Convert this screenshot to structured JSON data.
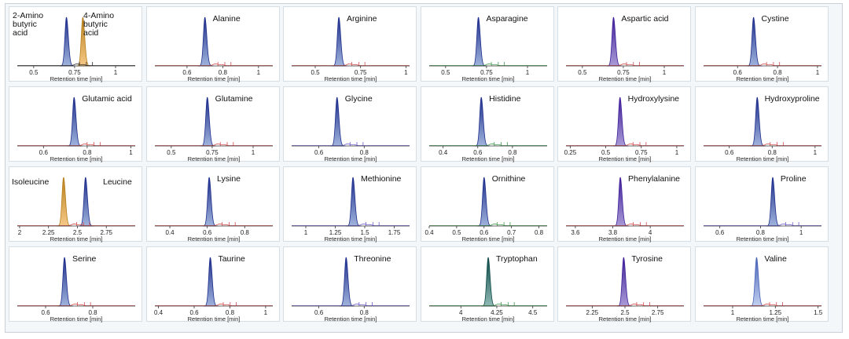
{
  "chart_data": [
    {
      "type": "line",
      "title": "2-Amino butyric acid",
      "title_lines": [
        "2-Amino",
        "butyric",
        "acid"
      ],
      "title2": "4-Amino butyric acid",
      "title2_lines": [
        "4-Amino",
        "butyric",
        "acid"
      ],
      "xlabel": "Retention time [min]",
      "xlim": [
        0.4,
        1.12
      ],
      "ticks": [
        0.5,
        0.75,
        1
      ],
      "tick_labels": [
        "0.5",
        "0.75",
        "1"
      ],
      "peak": 0.7,
      "peak2": 0.8,
      "color": "blue",
      "color2": "orange",
      "trace": "#2a2a2a"
    },
    {
      "type": "line",
      "title": "Alanine",
      "xlabel": "Retention time [min]",
      "xlim": [
        0.42,
        1.08
      ],
      "ticks": [
        0.6,
        0.8,
        1
      ],
      "tick_labels": [
        "0.6",
        "0.8",
        "1"
      ],
      "peak": 0.7,
      "color": "blue",
      "trace": "#d64a4a"
    },
    {
      "type": "line",
      "title": "Arginine",
      "xlabel": "Retention time [min]",
      "xlim": [
        0.37,
        1.02
      ],
      "ticks": [
        0.5,
        0.75,
        1
      ],
      "tick_labels": [
        "0.5",
        "0.75",
        "1"
      ],
      "peak": 0.63,
      "color": "blue",
      "trace": "#d64a4a"
    },
    {
      "type": "line",
      "title": "Asparagine",
      "xlabel": "Retention time [min]",
      "xlim": [
        0.4,
        1.12
      ],
      "ticks": [
        0.5,
        0.75,
        1
      ],
      "tick_labels": [
        "0.5",
        "0.75",
        "1"
      ],
      "peak": 0.7,
      "color": "blue",
      "trace": "#3e9a4a"
    },
    {
      "type": "line",
      "title": "Aspartic acid",
      "xlabel": "Retention time [min]",
      "xlim": [
        0.4,
        1.12
      ],
      "ticks": [
        0.5,
        0.75,
        1
      ],
      "tick_labels": [
        "0.5",
        "0.75",
        "1"
      ],
      "peak": 0.69,
      "color": "violet",
      "trace": "#d64a4a"
    },
    {
      "type": "line",
      "title": "Cystine",
      "xlabel": "Retention time [min]",
      "xlim": [
        0.43,
        1.02
      ],
      "ticks": [
        0.6,
        0.8,
        1
      ],
      "tick_labels": [
        "0.6",
        "0.8",
        "1"
      ],
      "peak": 0.68,
      "color": "blue",
      "trace": "#d64a4a"
    },
    {
      "type": "line",
      "title": "Glutamic acid",
      "xlabel": "Retention time [min]",
      "xlim": [
        0.48,
        1.02
      ],
      "ticks": [
        0.6,
        0.8,
        1
      ],
      "tick_labels": [
        "0.6",
        "0.8",
        "1"
      ],
      "peak": 0.74,
      "color": "blue",
      "trace": "#d64a4a"
    },
    {
      "type": "line",
      "title": "Glutamine",
      "xlabel": "Retention time [min]",
      "xlim": [
        0.4,
        1.12
      ],
      "ticks": [
        0.5,
        0.75,
        1
      ],
      "tick_labels": [
        "0.5",
        "0.75",
        "1"
      ],
      "peak": 0.72,
      "color": "blue",
      "trace": "#d64a4a"
    },
    {
      "type": "line",
      "title": "Glycine",
      "xlabel": "Retention time [min]",
      "xlim": [
        0.48,
        1.0
      ],
      "ticks": [
        0.6,
        0.8
      ],
      "tick_labels": [
        "0.6",
        "0.8"
      ],
      "peak": 0.68,
      "color": "blue",
      "trace": "#6a5acd"
    },
    {
      "type": "line",
      "title": "Histidine",
      "xlabel": "Retention time [min]",
      "xlim": [
        0.32,
        1.0
      ],
      "ticks": [
        0.4,
        0.6,
        0.8
      ],
      "tick_labels": [
        "0.4",
        "0.6",
        "0.8"
      ],
      "peak": 0.62,
      "color": "blue",
      "trace": "#3e9a4a"
    },
    {
      "type": "line",
      "title": "Hydroxylysine",
      "xlabel": "Retention time [min]",
      "xlim": [
        0.22,
        1.05
      ],
      "ticks": [
        0.25,
        0.5,
        0.75,
        1
      ],
      "tick_labels": [
        "0.25",
        "0.5",
        "0.75",
        "1"
      ],
      "peak": 0.6,
      "color": "violet",
      "trace": "#d64a4a"
    },
    {
      "type": "line",
      "title": "Hydroxyproline",
      "xlabel": "Retention time [min]",
      "xlim": [
        0.48,
        1.03
      ],
      "ticks": [
        0.6,
        0.8,
        1
      ],
      "tick_labels": [
        "0.6",
        "0.8",
        "1"
      ],
      "peak": 0.73,
      "color": "blue",
      "trace": "#d64a4a"
    },
    {
      "type": "line",
      "title": "Isoleucine",
      "title2": "Leucine",
      "xlabel": "Retention time [min]",
      "xlim": [
        1.98,
        3.0
      ],
      "ticks": [
        2,
        2.25,
        2.5,
        2.75
      ],
      "tick_labels": [
        "2",
        "2.25",
        "2.5",
        "2.75"
      ],
      "peak": 2.38,
      "peak2": 2.57,
      "color": "orange",
      "color2": "blue",
      "trace": "#d64a4a"
    },
    {
      "type": "line",
      "title": "Lysine",
      "xlabel": "Retention time [min]",
      "xlim": [
        0.32,
        0.95
      ],
      "ticks": [
        0.4,
        0.6,
        0.8
      ],
      "tick_labels": [
        "0.4",
        "0.6",
        "0.8"
      ],
      "peak": 0.61,
      "color": "blue",
      "trace": "#d64a4a"
    },
    {
      "type": "line",
      "title": "Methionine",
      "xlabel": "Retention time [min]",
      "xlim": [
        0.88,
        1.88
      ],
      "ticks": [
        1,
        1.25,
        1.5,
        1.75
      ],
      "tick_labels": [
        "1",
        "1.25",
        "1.5",
        "1.75"
      ],
      "peak": 1.4,
      "color": "blue",
      "trace": "#6a5acd"
    },
    {
      "type": "line",
      "title": "Ornithine",
      "xlabel": "Retention time [min]",
      "xlim": [
        0.4,
        0.83
      ],
      "ticks": [
        0.4,
        0.5,
        0.6,
        0.7,
        0.8
      ],
      "tick_labels": [
        "0.4",
        "0.5",
        "0.6",
        "0.7",
        "0.8"
      ],
      "peak": 0.6,
      "color": "blue",
      "trace": "#3e9a4a"
    },
    {
      "type": "line",
      "title": "Phenylalanine",
      "xlabel": "Retention time [min]",
      "xlim": [
        3.55,
        4.18
      ],
      "ticks": [
        3.6,
        3.8,
        4
      ],
      "tick_labels": [
        "3.6",
        "3.8",
        "4"
      ],
      "peak": 3.84,
      "color": "violet",
      "trace": "#d64a4a"
    },
    {
      "type": "line",
      "title": "Proline",
      "xlabel": "Retention time [min]",
      "xlim": [
        0.52,
        1.1
      ],
      "ticks": [
        0.6,
        0.8,
        1
      ],
      "tick_labels": [
        "0.6",
        "0.8",
        "1"
      ],
      "peak": 0.86,
      "color": "blue",
      "trace": "#6a5acd"
    },
    {
      "type": "line",
      "title": "Serine",
      "xlabel": "Retention time [min]",
      "xlim": [
        0.48,
        0.98
      ],
      "ticks": [
        0.6,
        0.8
      ],
      "tick_labels": [
        "0.6",
        "0.8"
      ],
      "peak": 0.68,
      "color": "blue",
      "trace": "#d64a4a"
    },
    {
      "type": "line",
      "title": "Taurine",
      "xlabel": "Retention time [min]",
      "xlim": [
        0.38,
        1.04
      ],
      "ticks": [
        0.4,
        0.6,
        0.8,
        1
      ],
      "tick_labels": [
        "0.4",
        "0.6",
        "0.8",
        "1"
      ],
      "peak": 0.69,
      "color": "blue",
      "trace": "#d64a4a"
    },
    {
      "type": "line",
      "title": "Threonine",
      "xlabel": "Retention time [min]",
      "xlim": [
        0.48,
        1.0
      ],
      "ticks": [
        0.6,
        0.8
      ],
      "tick_labels": [
        "0.6",
        "0.8"
      ],
      "peak": 0.72,
      "color": "blue",
      "trace": "#6a5acd"
    },
    {
      "type": "line",
      "title": "Tryptophan",
      "xlabel": "Retention time [min]",
      "xlim": [
        3.78,
        4.6
      ],
      "ticks": [
        4,
        4.25,
        4.5
      ],
      "tick_labels": [
        "4",
        "4.25",
        "4.5"
      ],
      "peak": 4.19,
      "color": "teal",
      "trace": "#3e9a4a"
    },
    {
      "type": "line",
      "title": "Tyrosine",
      "xlabel": "Retention time [min]",
      "xlim": [
        2.05,
        2.95
      ],
      "ticks": [
        2.25,
        2.5,
        2.75
      ],
      "tick_labels": [
        "2.25",
        "2.5",
        "2.75"
      ],
      "peak": 2.49,
      "color": "violet",
      "trace": "#d64a4a"
    },
    {
      "type": "line",
      "title": "Valine",
      "xlabel": "Retention time [min]",
      "xlim": [
        0.83,
        1.52
      ],
      "ticks": [
        1,
        1.25,
        1.5
      ],
      "tick_labels": [
        "1",
        "1.25",
        "1.5"
      ],
      "peak": 1.14,
      "color": "lightblue",
      "trace": "#d64a4a"
    }
  ]
}
